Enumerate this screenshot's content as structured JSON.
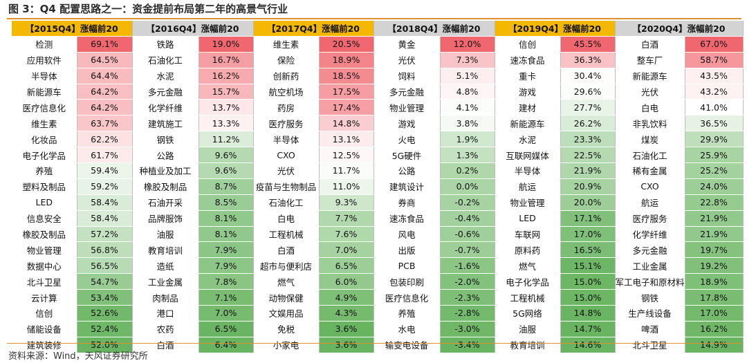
{
  "title": "图 3：Q4 配置思路之一：资金提前布局第二年的高景气行业",
  "source": "资料来源：Wind，天风证券研究所",
  "blocks": [
    {
      "header": "【2015Q4】涨幅前20",
      "style": "orange",
      "rows": [
        {
          "name": "检测",
          "value": "69.1%"
        },
        {
          "name": "应用软件",
          "value": "64.5%"
        },
        {
          "name": "半导体",
          "value": "64.4%"
        },
        {
          "name": "新能源车",
          "value": "64.2%"
        },
        {
          "name": "医疗信息化",
          "value": "64.2%"
        },
        {
          "name": "维生素",
          "value": "63.7%"
        },
        {
          "name": "化妆品",
          "value": "62.2%"
        },
        {
          "name": "电子化学品",
          "value": "61.7%"
        },
        {
          "name": "养殖",
          "value": "59.4%"
        },
        {
          "name": "塑料及制品",
          "value": "59.2%"
        },
        {
          "name": "LED",
          "value": "58.4%"
        },
        {
          "name": "信息安全",
          "value": "58.4%"
        },
        {
          "name": "橡胶及制品",
          "value": "57.2%"
        },
        {
          "name": "物业管理",
          "value": "56.8%"
        },
        {
          "name": "数据中心",
          "value": "56.5%"
        },
        {
          "name": "北斗卫星",
          "value": "54.7%"
        },
        {
          "name": "云计算",
          "value": "53.4%"
        },
        {
          "name": "信创",
          "value": "52.6%"
        },
        {
          "name": "储能设备",
          "value": "52.4%"
        },
        {
          "name": "建筑装修",
          "value": "52.0%"
        }
      ]
    },
    {
      "header": "【2016Q4】涨幅前20",
      "style": "gray",
      "rows": [
        {
          "name": "铁路",
          "value": "19.0%"
        },
        {
          "name": "石油化工",
          "value": "16.7%"
        },
        {
          "name": "水泥",
          "value": "16.2%"
        },
        {
          "name": "多元金融",
          "value": "15.7%"
        },
        {
          "name": "化学纤维",
          "value": "13.7%"
        },
        {
          "name": "建筑施工",
          "value": "13.3%"
        },
        {
          "name": "钢铁",
          "value": "11.2%"
        },
        {
          "name": "公路",
          "value": "9.6%"
        },
        {
          "name": "种植业及加工",
          "value": "9.6%"
        },
        {
          "name": "橡胶及制品",
          "value": "8.7%"
        },
        {
          "name": "石油开采",
          "value": "8.5%"
        },
        {
          "name": "品牌服饰",
          "value": "8.1%"
        },
        {
          "name": "油服",
          "value": "8.1%"
        },
        {
          "name": "教育培训",
          "value": "7.9%"
        },
        {
          "name": "造纸",
          "value": "7.9%"
        },
        {
          "name": "工业金属",
          "value": "7.8%"
        },
        {
          "name": "肉制品",
          "value": "7.1%"
        },
        {
          "name": "港口",
          "value": "7.0%"
        },
        {
          "name": "农药",
          "value": "6.5%"
        },
        {
          "name": "白酒",
          "value": "6.4%"
        }
      ]
    },
    {
      "header": "【2017Q4】涨幅前20",
      "style": "orange",
      "rows": [
        {
          "name": "维生素",
          "value": "20.5%"
        },
        {
          "name": "保险",
          "value": "18.9%"
        },
        {
          "name": "创新药",
          "value": "18.5%"
        },
        {
          "name": "航空机场",
          "value": "17.5%"
        },
        {
          "name": "药房",
          "value": "17.4%"
        },
        {
          "name": "医疗服务",
          "value": "14.8%"
        },
        {
          "name": "半导体",
          "value": "13.1%"
        },
        {
          "name": "CXO",
          "value": "12.5%"
        },
        {
          "name": "光伏",
          "value": "11.7%"
        },
        {
          "name": "疫苗与生物制品",
          "value": "11.0%"
        },
        {
          "name": "石油化工",
          "value": "9.3%"
        },
        {
          "name": "白电",
          "value": "7.7%"
        },
        {
          "name": "工程机械",
          "value": "7.6%"
        },
        {
          "name": "白酒",
          "value": "7.0%"
        },
        {
          "name": "超市与便利店",
          "value": "6.5%"
        },
        {
          "name": "燃气",
          "value": "6.0%"
        },
        {
          "name": "动物保健",
          "value": "4.9%"
        },
        {
          "name": "文娱用品",
          "value": "4.3%"
        },
        {
          "name": "免税",
          "value": "3.6%"
        },
        {
          "name": "小家电",
          "value": "3.6%"
        }
      ]
    },
    {
      "header": "【2018Q4】涨幅前20",
      "style": "gray",
      "rows": [
        {
          "name": "黄金",
          "value": "12.0%"
        },
        {
          "name": "光伏",
          "value": "7.3%"
        },
        {
          "name": "饲料",
          "value": "5.1%"
        },
        {
          "name": "多元金融",
          "value": "4.8%"
        },
        {
          "name": "物业管理",
          "value": "4.1%"
        },
        {
          "name": "游戏",
          "value": "3.8%"
        },
        {
          "name": "火电",
          "value": "1.9%"
        },
        {
          "name": "5G硬件",
          "value": "1.3%"
        },
        {
          "name": "公路",
          "value": "0.2%"
        },
        {
          "name": "建筑设计",
          "value": "0.0%"
        },
        {
          "name": "券商",
          "value": "-0.2%"
        },
        {
          "name": "速冻食品",
          "value": "-0.4%"
        },
        {
          "name": "风电",
          "value": "-0.6%"
        },
        {
          "name": "出版",
          "value": "-0.7%"
        },
        {
          "name": "PCB",
          "value": "-1.6%"
        },
        {
          "name": "包装印刷",
          "value": "-2.0%"
        },
        {
          "name": "医疗信息化",
          "value": "-2.3%"
        },
        {
          "name": "养殖",
          "value": "-2.8%"
        },
        {
          "name": "水电",
          "value": "-3.0%"
        },
        {
          "name": "输变电设备",
          "value": "-3.4%"
        }
      ]
    },
    {
      "header": "【2019Q4】涨幅前20",
      "style": "orange",
      "rows": [
        {
          "name": "信创",
          "value": "45.5%"
        },
        {
          "name": "速冻食品",
          "value": "36.3%"
        },
        {
          "name": "重卡",
          "value": "30.4%"
        },
        {
          "name": "游戏",
          "value": "29.6%"
        },
        {
          "name": "建材",
          "value": "27.7%"
        },
        {
          "name": "新能源车",
          "value": "26.2%"
        },
        {
          "name": "水泥",
          "value": "23.3%"
        },
        {
          "name": "互联网媒体",
          "value": "22.5%"
        },
        {
          "name": "半导体",
          "value": "21.9%"
        },
        {
          "name": "航运",
          "value": "20.9%"
        },
        {
          "name": "物业管理",
          "value": "20.0%"
        },
        {
          "name": "LED",
          "value": "17.1%"
        },
        {
          "name": "车联网",
          "value": "17.0%"
        },
        {
          "name": "原料药",
          "value": "16.5%"
        },
        {
          "name": "燃气",
          "value": "15.1%"
        },
        {
          "name": "电子化学品",
          "value": "15.0%"
        },
        {
          "name": "工程机械",
          "value": "15.0%"
        },
        {
          "name": "5G网络",
          "value": "14.8%"
        },
        {
          "name": "油服",
          "value": "14.7%"
        },
        {
          "name": "教育培训",
          "value": "14.6%"
        }
      ]
    },
    {
      "header": "【2020Q4】涨幅前20",
      "style": "gray",
      "rows": [
        {
          "name": "白酒",
          "value": "67.0%"
        },
        {
          "name": "整车厂",
          "value": "58.7%"
        },
        {
          "name": "新能源车",
          "value": "43.5%"
        },
        {
          "name": "光伏",
          "value": "43.2%"
        },
        {
          "name": "白电",
          "value": "41.0%"
        },
        {
          "name": "非乳饮料",
          "value": "36.5%"
        },
        {
          "name": "煤炭",
          "value": "29.9%"
        },
        {
          "name": "石油化工",
          "value": "25.9%"
        },
        {
          "name": "稀有金属",
          "value": "25.2%"
        },
        {
          "name": "CXO",
          "value": "24.0%"
        },
        {
          "name": "航运",
          "value": "22.8%"
        },
        {
          "name": "医疗服务",
          "value": "21.9%"
        },
        {
          "name": "化学纤维",
          "value": "21.9%"
        },
        {
          "name": "多元金融",
          "value": "19.7%"
        },
        {
          "name": "工业金属",
          "value": "19.2%"
        },
        {
          "name": "军工电子和原材料",
          "value": "18.9%"
        },
        {
          "name": "钢铁",
          "value": "17.8%"
        },
        {
          "name": "生产线设备",
          "value": "17.0%"
        },
        {
          "name": "啤酒",
          "value": "16.2%"
        },
        {
          "name": "北斗卫星",
          "value": "14.9%"
        }
      ]
    }
  ]
}
